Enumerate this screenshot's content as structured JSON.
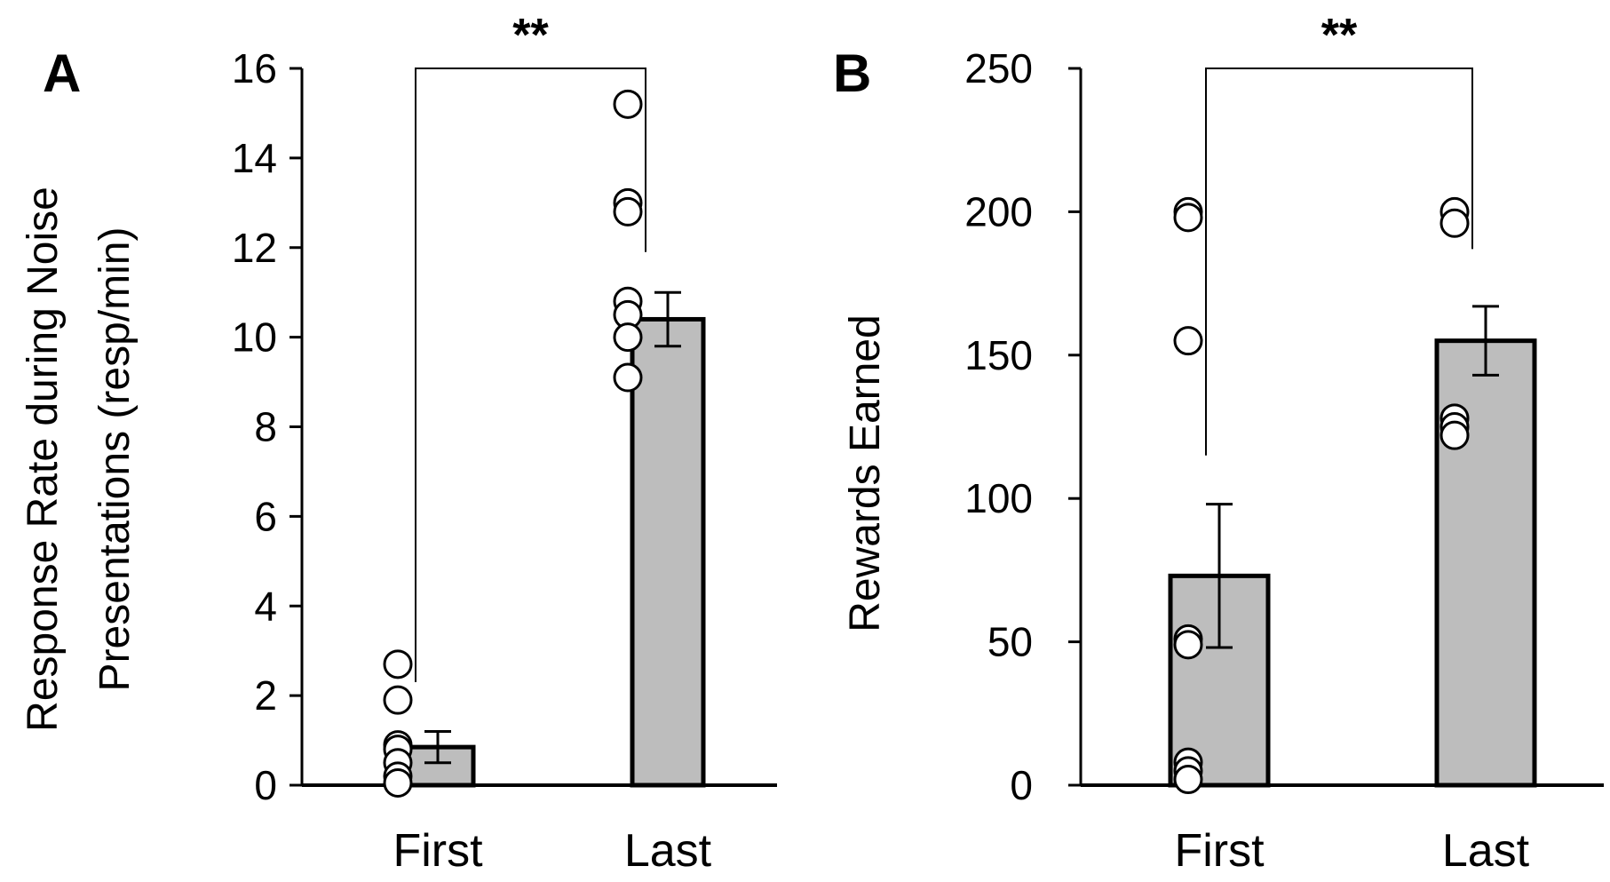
{
  "chart_data": [
    {
      "type": "bar",
      "panel": "A",
      "categories": [
        "First",
        "Last"
      ],
      "values": [
        0.85,
        10.4
      ],
      "errors": [
        0.35,
        0.6
      ],
      "points": [
        [
          2.7,
          1.9,
          0.9,
          0.8,
          0.5,
          0.2,
          0.05
        ],
        [
          15.2,
          13.0,
          12.8,
          10.8,
          10.5,
          10.0,
          9.1
        ]
      ],
      "ylabel": [
        "Response Rate during Noise",
        "Presentations (resp/min)"
      ],
      "xlabel": "",
      "ylim": [
        0,
        16
      ],
      "yticks": [
        0,
        2,
        4,
        6,
        8,
        10,
        12,
        14,
        16
      ],
      "significance": "**",
      "bracket_left_top": 2.3,
      "bracket_right_top": 11.9,
      "bracket_y": 16,
      "bar_color": "#bdbdbd"
    },
    {
      "type": "bar",
      "panel": "B",
      "categories": [
        "First",
        "Last"
      ],
      "values": [
        73,
        155
      ],
      "errors": [
        25,
        12
      ],
      "points": [
        [
          200,
          198,
          155,
          51,
          49,
          8,
          5,
          2
        ],
        [
          200,
          196,
          128,
          125,
          122
        ]
      ],
      "ylabel": [
        "Rewards Earned"
      ],
      "xlabel": "",
      "ylim": [
        0,
        250
      ],
      "yticks": [
        0,
        50,
        100,
        150,
        200,
        250
      ],
      "significance": "**",
      "bracket_left_top": 115,
      "bracket_right_top": 187,
      "bracket_y": 250,
      "bar_color": "#bdbdbd"
    }
  ]
}
